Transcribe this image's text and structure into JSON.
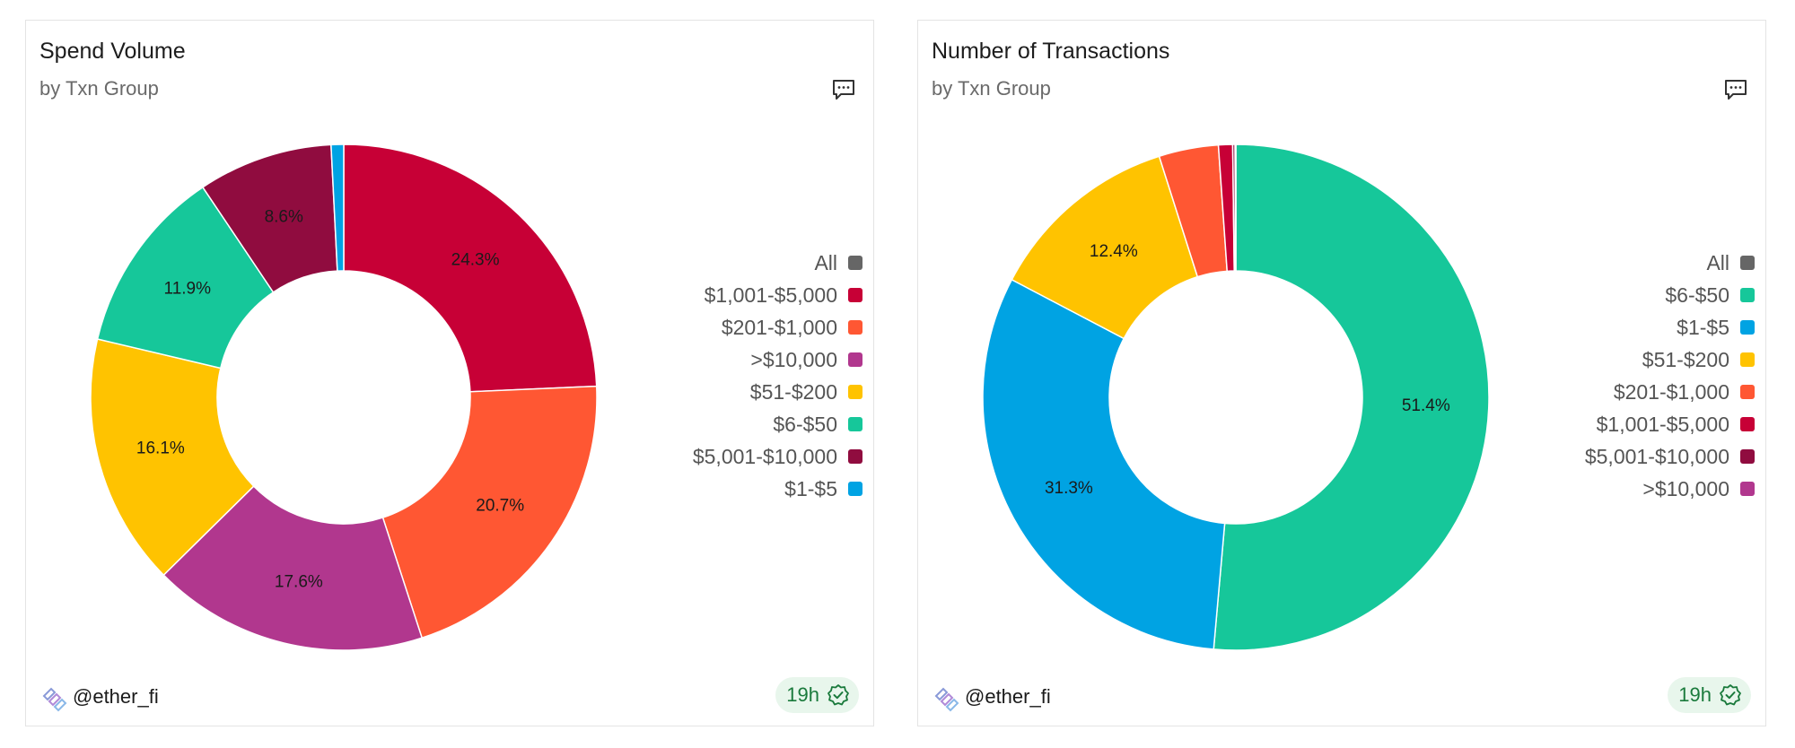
{
  "charts": [
    {
      "title": "Spend Volume",
      "subtitle": "by Txn Group",
      "author": "@ether_fi",
      "age": "19h"
    },
    {
      "title": "Number of Transactions",
      "subtitle": "by Txn Group",
      "author": "@ether_fi",
      "age": "19h"
    }
  ],
  "chart_data": [
    {
      "type": "pie",
      "title": "Spend Volume",
      "subtitle": "by Txn Group",
      "donut": true,
      "legend_position": "right",
      "legend": [
        {
          "name": "All",
          "color": "#666666"
        },
        {
          "name": "$1,001-$5,000",
          "color": "#C70036"
        },
        {
          "name": "$201-$1,000",
          "color": "#FF5733"
        },
        {
          "name": ">$10,000",
          "color": "#B1378E"
        },
        {
          "name": "$51-$200",
          "color": "#FFC300"
        },
        {
          "name": "$6-$50",
          "color": "#16C79A"
        },
        {
          "name": "$5,001-$10,000",
          "color": "#900C3F"
        },
        {
          "name": "$1-$5",
          "color": "#00A3E3"
        }
      ],
      "slices": [
        {
          "name": "$1,001-$5,000",
          "value": 24.3,
          "label": "24.3%",
          "color": "#C70036"
        },
        {
          "name": "$201-$1,000",
          "value": 20.7,
          "label": "20.7%",
          "color": "#FF5733"
        },
        {
          "name": ">$10,000",
          "value": 17.6,
          "label": "17.6%",
          "color": "#B1378E"
        },
        {
          "name": "$51-$200",
          "value": 16.1,
          "label": "16.1%",
          "color": "#FFC300"
        },
        {
          "name": "$6-$50",
          "value": 11.9,
          "label": "11.9%",
          "color": "#16C79A"
        },
        {
          "name": "$5,001-$10,000",
          "value": 8.6,
          "label": "8.6%",
          "color": "#900C3F"
        },
        {
          "name": "$1-$5",
          "value": 0.8,
          "label": "",
          "color": "#00A3E3"
        }
      ]
    },
    {
      "type": "pie",
      "title": "Number of Transactions",
      "subtitle": "by Txn Group",
      "donut": true,
      "legend_position": "right",
      "legend": [
        {
          "name": "All",
          "color": "#666666"
        },
        {
          "name": "$6-$50",
          "color": "#16C79A"
        },
        {
          "name": "$1-$5",
          "color": "#00A3E3"
        },
        {
          "name": "$51-$200",
          "color": "#FFC300"
        },
        {
          "name": "$201-$1,000",
          "color": "#FF5733"
        },
        {
          "name": "$1,001-$5,000",
          "color": "#C70036"
        },
        {
          "name": "$5,001-$10,000",
          "color": "#900C3F"
        },
        {
          "name": ">$10,000",
          "color": "#B1378E"
        }
      ],
      "slices": [
        {
          "name": "$6-$50",
          "value": 51.4,
          "label": "51.4%",
          "color": "#16C79A"
        },
        {
          "name": "$1-$5",
          "value": 31.3,
          "label": "31.3%",
          "color": "#00A3E3"
        },
        {
          "name": "$51-$200",
          "value": 12.4,
          "label": "12.4%",
          "color": "#FFC300"
        },
        {
          "name": "$201-$1,000",
          "value": 3.8,
          "label": "",
          "color": "#FF5733"
        },
        {
          "name": "$1,001-$5,000",
          "value": 0.9,
          "label": "",
          "color": "#C70036"
        },
        {
          "name": "$5,001-$10,000",
          "value": 0.15,
          "label": "",
          "color": "#900C3F"
        },
        {
          "name": ">$10,000",
          "value": 0.05,
          "label": "",
          "color": "#B1378E"
        }
      ]
    }
  ]
}
